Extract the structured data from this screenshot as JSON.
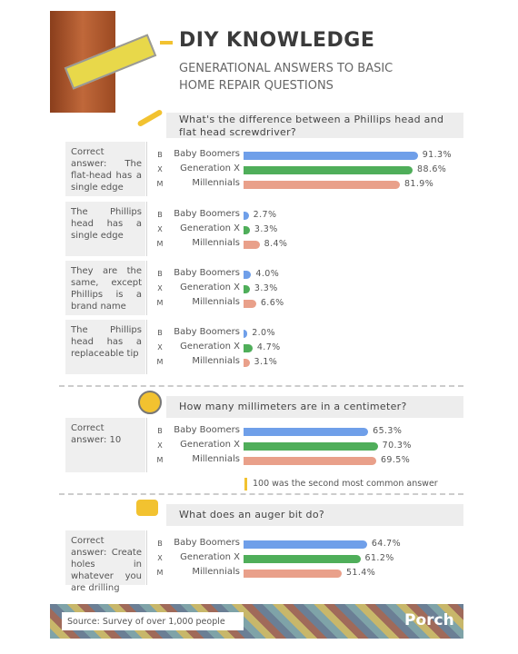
{
  "header": {
    "title": "DIY KNOWLEDGE",
    "subtitle": "GENERATIONAL ANSWERS TO BASIC HOME REPAIR QUESTIONS"
  },
  "generations": [
    {
      "letter": "B",
      "name": "Baby Boomers",
      "color": "#6f9fe9"
    },
    {
      "letter": "X",
      "name": "Generation X",
      "color": "#4fae5a"
    },
    {
      "letter": "M",
      "name": "Millennials",
      "color": "#e9a08a"
    }
  ],
  "chart_data": [
    {
      "type": "bar",
      "question": "What's the difference between a Phillips head and flat head screwdriver?",
      "answers": [
        {
          "text": "Correct answer: The flat-head has a single edge",
          "values": [
            91.3,
            88.6,
            81.9
          ],
          "value_labels": [
            "91.3%",
            "88.6%",
            "81.9%"
          ]
        },
        {
          "text": "The Phillips head has a single edge",
          "values": [
            2.7,
            3.3,
            8.4
          ],
          "value_labels": [
            "2.7%",
            "3.3%",
            "8.4%"
          ]
        },
        {
          "text": "They are the same, except Phillips is a brand name",
          "values": [
            4.0,
            3.3,
            6.6
          ],
          "value_labels": [
            "4.0%",
            "3.3%",
            "6.6%"
          ]
        },
        {
          "text": "The Phillips head has a replaceable tip",
          "values": [
            2.0,
            4.7,
            3.1
          ],
          "value_labels": [
            "2.0%",
            "4.7%",
            "3.1%"
          ]
        }
      ]
    },
    {
      "type": "bar",
      "question": "How many millimeters are in a centimeter?",
      "answers": [
        {
          "text": "Correct answer: 10",
          "values": [
            65.3,
            70.3,
            69.5
          ],
          "value_labels": [
            "65.3%",
            "70.3%",
            "69.5%"
          ]
        }
      ],
      "note": "100 was the second most common answer"
    },
    {
      "type": "bar",
      "question": "What does an auger bit do?",
      "answers": [
        {
          "text": "Correct answer: Create holes in whatever you are drilling",
          "values": [
            64.7,
            61.2,
            51.4
          ],
          "value_labels": [
            "64.7%",
            "61.2%",
            "51.4%"
          ]
        }
      ]
    }
  ],
  "footer": {
    "source": "Source: Survey of over 1,000 people",
    "brand": "Porch"
  }
}
